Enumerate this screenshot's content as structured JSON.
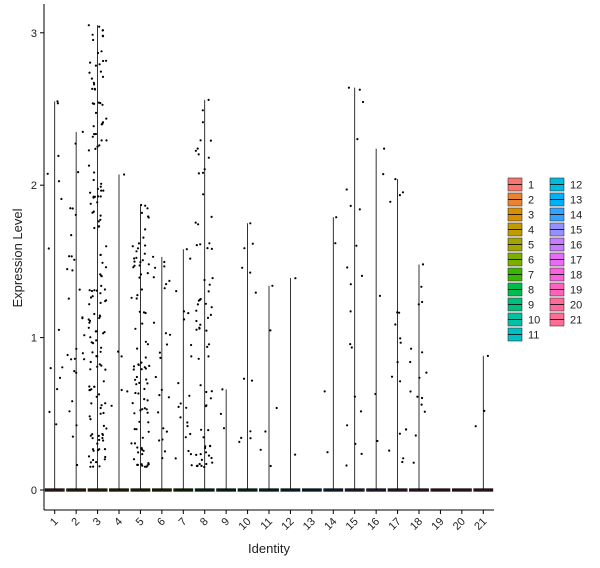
{
  "chart_data": {
    "type": "violin-jitter",
    "title": "",
    "xlabel": "Identity",
    "ylabel": "Expression Level",
    "ylim": [
      -0.15,
      3.05
    ],
    "yticks": [
      0,
      1,
      2,
      3
    ],
    "categories": [
      "1",
      "2",
      "3",
      "4",
      "5",
      "6",
      "7",
      "8",
      "9",
      "10",
      "11",
      "12",
      "13",
      "14",
      "15",
      "16",
      "17",
      "18",
      "19",
      "20",
      "21"
    ],
    "colors": [
      "#F8766D",
      "#EA8331",
      "#D89000",
      "#C09B00",
      "#A3A500",
      "#7CAE00",
      "#39B600",
      "#00BB4E",
      "#00BF7D",
      "#00C1A3",
      "#00BFC4",
      "#00BAE0",
      "#00B0F6",
      "#35A2FF",
      "#9590FF",
      "#C77CFF",
      "#E76BF3",
      "#FA62DB",
      "#FF62BC",
      "#FF6A98",
      "#FF6C96"
    ],
    "max_expression": [
      2.55,
      2.35,
      3.05,
      2.07,
      1.87,
      1.53,
      1.58,
      2.56,
      0.66,
      1.75,
      1.34,
      1.39,
      0.0,
      1.79,
      2.64,
      2.24,
      2.04,
      1.48,
      0.0,
      0.0,
      0.88
    ],
    "cells_expressing": [
      14,
      30,
      160,
      6,
      90,
      25,
      22,
      70,
      3,
      12,
      6,
      2,
      0,
      4,
      20,
      5,
      18,
      16,
      0,
      0,
      3
    ],
    "legend": {
      "title": "",
      "position": "right",
      "entries": [
        "1",
        "2",
        "3",
        "4",
        "5",
        "6",
        "7",
        "8",
        "9",
        "10",
        "11",
        "12",
        "13",
        "14",
        "15",
        "16",
        "17",
        "18",
        "19",
        "20",
        "21"
      ]
    },
    "grid": false
  }
}
